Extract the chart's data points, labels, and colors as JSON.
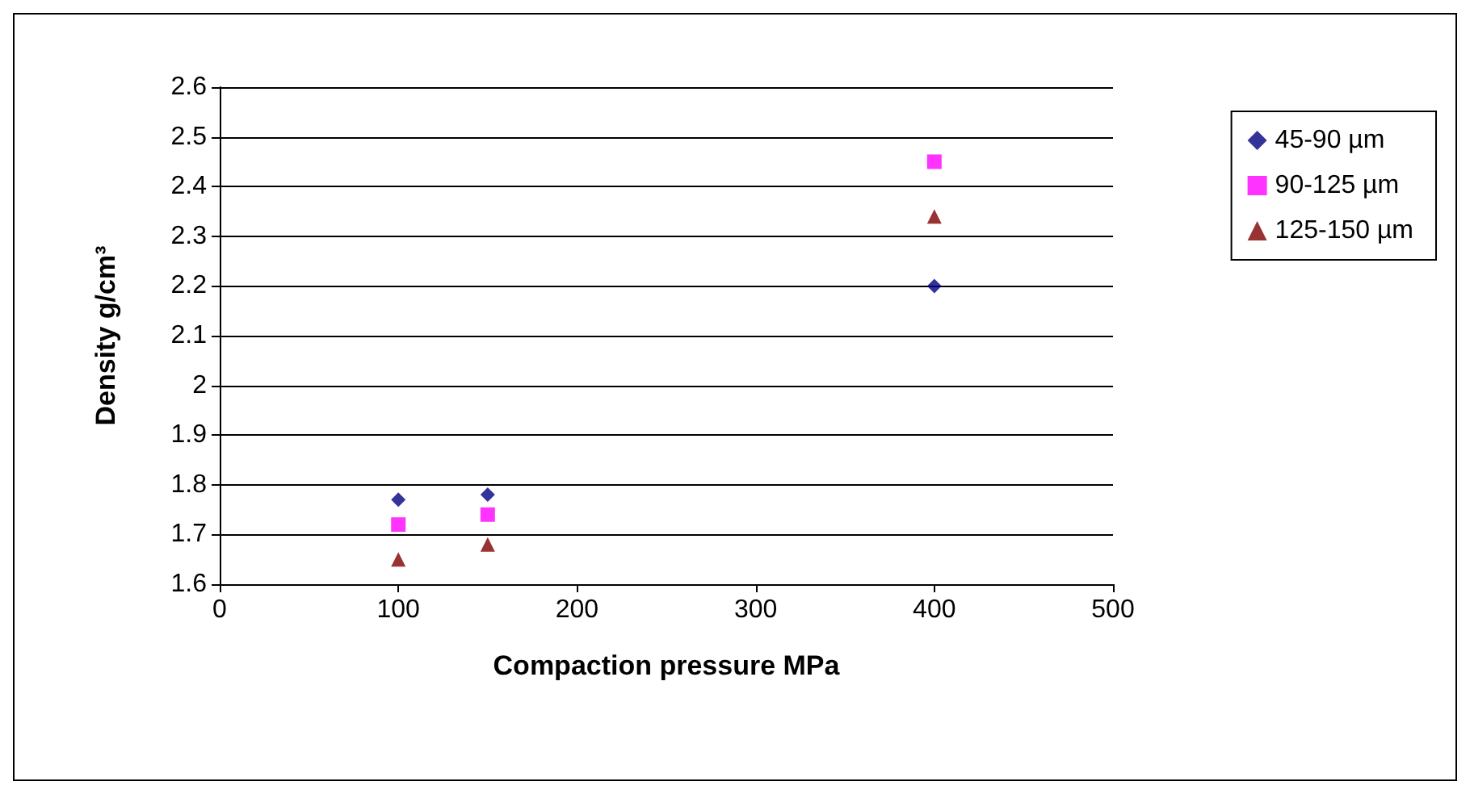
{
  "chart_data": {
    "type": "scatter",
    "xlabel": "Compaction pressure MPa",
    "ylabel": "Density g/cm³",
    "x": [
      100,
      150,
      400
    ],
    "series": [
      {
        "name": "45-90 µm",
        "color": "#000080",
        "marker": "diamond",
        "values": [
          1.77,
          1.78,
          2.2
        ]
      },
      {
        "name": "90-125 µm",
        "color": "#ff00ff",
        "marker": "square",
        "values": [
          1.72,
          1.74,
          2.45
        ]
      },
      {
        "name": "125-150 µm",
        "color": "#800000",
        "marker": "triangle",
        "values": [
          1.65,
          1.68,
          2.34
        ]
      }
    ],
    "xlim": [
      0,
      500
    ],
    "xticks": [
      0,
      100,
      200,
      300,
      400,
      500
    ],
    "ylim": [
      1.6,
      2.6
    ],
    "yticks": [
      1.6,
      1.7,
      1.8,
      1.9,
      2,
      2.1,
      2.2,
      2.3,
      2.4,
      2.5,
      2.6
    ],
    "grid": "y",
    "legend": "right"
  }
}
